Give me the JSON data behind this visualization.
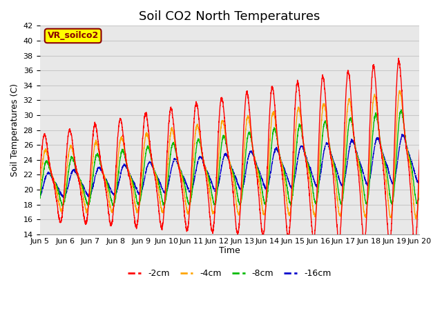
{
  "title": "Soil CO2 North Temperatures",
  "xlabel": "Time",
  "ylabel": "Soil Temperatures (C)",
  "ylim": [
    14,
    42
  ],
  "xlim": [
    0,
    15
  ],
  "annotation": "VR_soilco2",
  "annotation_color": "#8B0000",
  "annotation_bg": "#FFFF00",
  "line_colors": {
    "-2cm": "#FF0000",
    "-4cm": "#FFA500",
    "-8cm": "#00BB00",
    "-16cm": "#0000CC"
  },
  "legend_labels": [
    "-2cm",
    "-4cm",
    "-8cm",
    "-16cm"
  ],
  "x_tick_labels": [
    "Jun 5",
    "Jun 6",
    "Jun 7",
    "Jun 8",
    "Jun 9",
    "Jun 10",
    "Jun 11",
    "Jun 12",
    "Jun 13",
    "Jun 14",
    "Jun 15",
    "Jun 16",
    "Jun 17",
    "Jun 18",
    "Jun 19",
    "Jun 20"
  ],
  "grid_color": "#C8C8C8",
  "bg_color": "#E8E8E8",
  "fig_bg_color": "#FFFFFF",
  "title_fontsize": 13,
  "axis_label_fontsize": 9,
  "tick_fontsize": 8
}
